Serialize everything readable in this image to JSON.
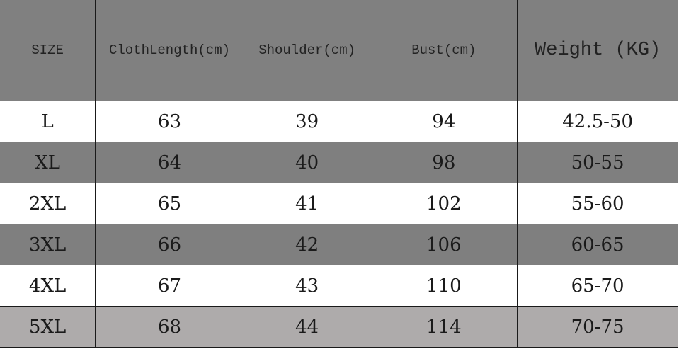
{
  "headers": [
    "SIZE",
    "ClothLength(cm)",
    "Shoulder(cm)",
    "Bust(cm)",
    "Weight (KG)"
  ],
  "rows": [
    [
      "L",
      "63",
      "39",
      "94",
      "42.5-50"
    ],
    [
      "XL",
      "64",
      "40",
      "98",
      "50-55"
    ],
    [
      "2XL",
      "65",
      "41",
      "102",
      "55-60"
    ],
    [
      "3XL",
      "66",
      "42",
      "106",
      "60-65"
    ],
    [
      "4XL",
      "67",
      "43",
      "110",
      "65-70"
    ],
    [
      "5XL",
      "68",
      "44",
      "114",
      "70-75"
    ]
  ],
  "colors": {
    "header": "#808080",
    "row_dark": "#7f7f7f",
    "row_light": "#ffffff",
    "row_last": "#aeabab"
  }
}
